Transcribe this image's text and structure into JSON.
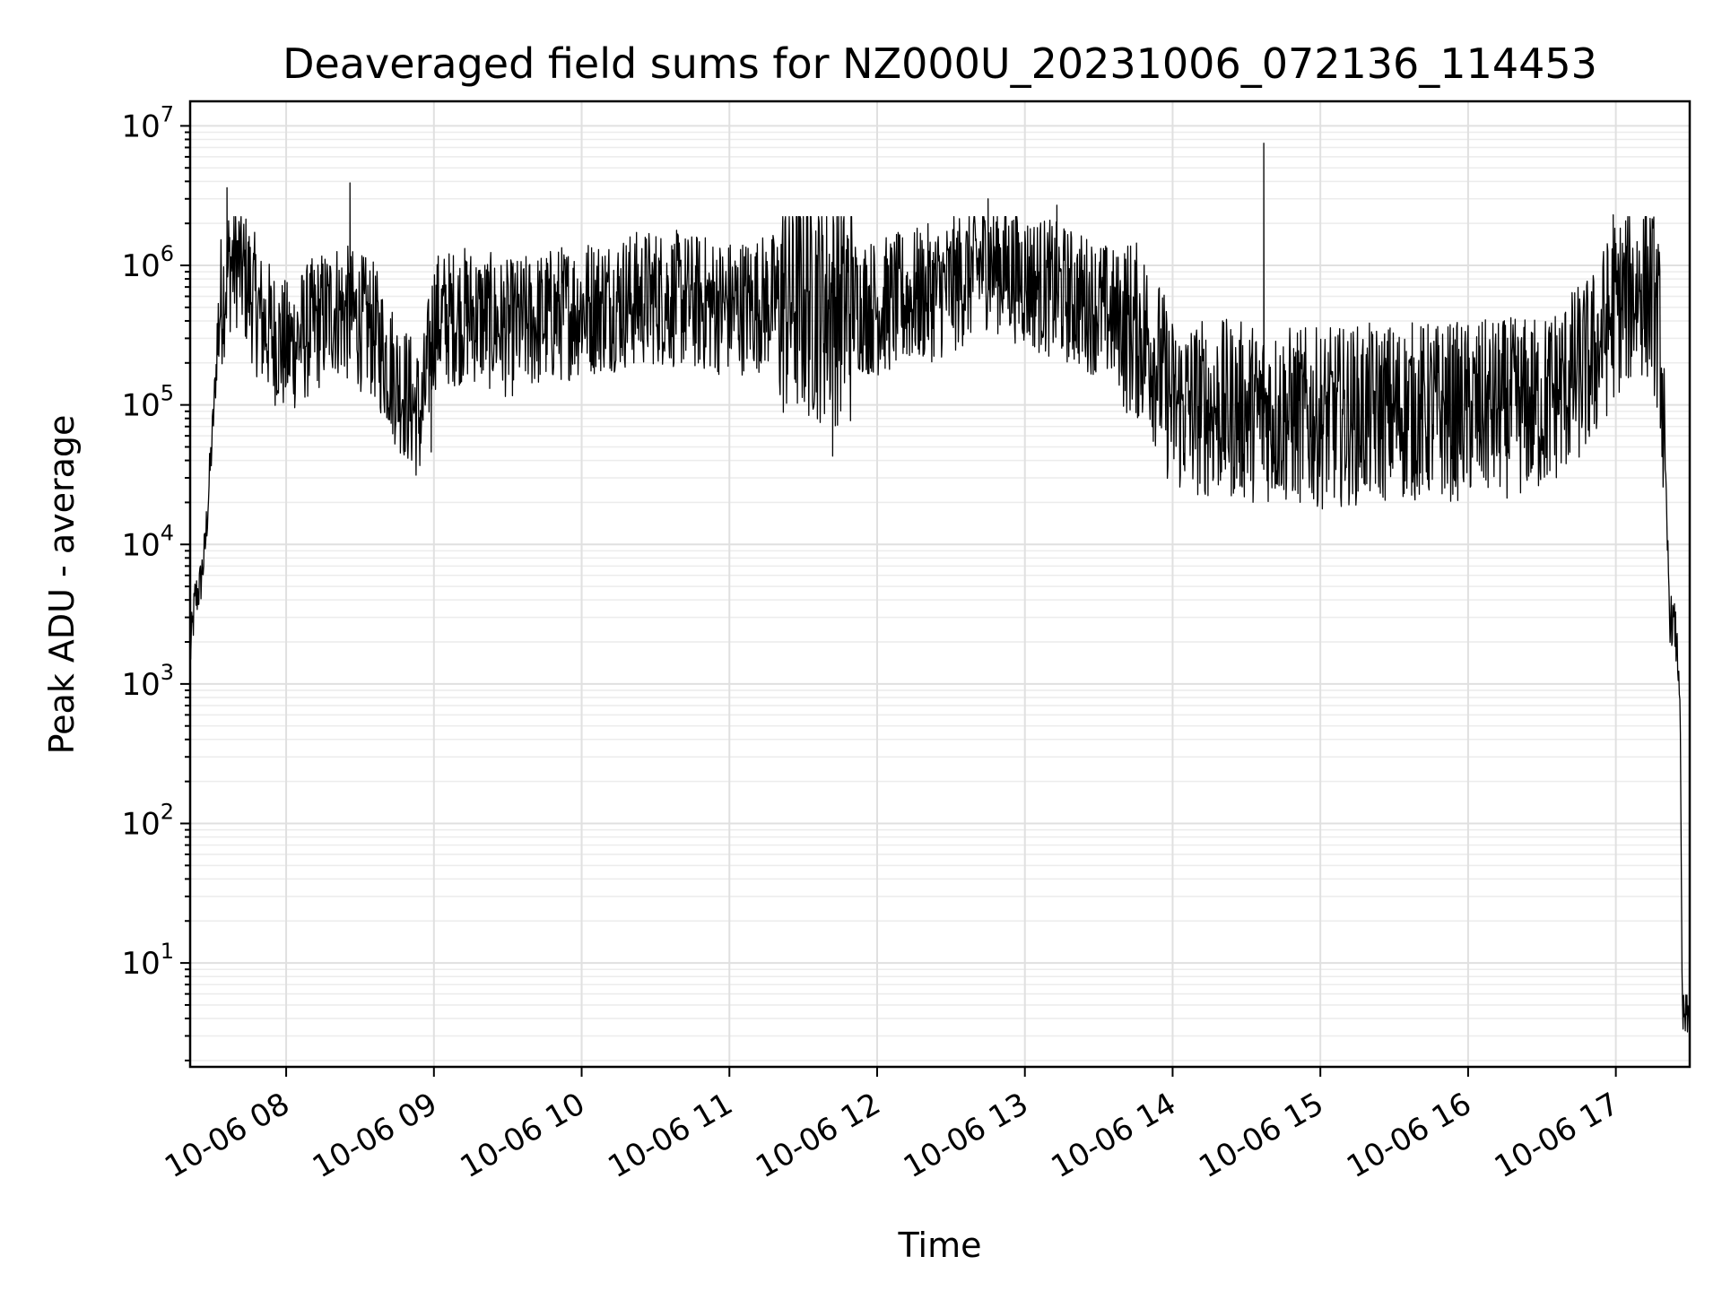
{
  "chart_data": {
    "type": "line",
    "title": "Deaveraged field sums for NZ000U_20231006_072136_114453",
    "xlabel": "Time",
    "ylabel": "Peak ADU - average",
    "x_scale": "time",
    "y_scale": "log",
    "xlim": [
      "10-06 07:21",
      "10-06 17:30"
    ],
    "ylim": [
      1.8,
      15000000
    ],
    "grid": "major and minor",
    "legend": "none",
    "line_color": "#000000",
    "x_ticks": [
      "10-06 08",
      "10-06 09",
      "10-06 10",
      "10-06 11",
      "10-06 12",
      "10-06 13",
      "10-06 14",
      "10-06 15",
      "10-06 16",
      "10-06 17"
    ],
    "y_ticks": [
      {
        "value": 10,
        "base": "10",
        "exp": "1"
      },
      {
        "value": 100,
        "base": "10",
        "exp": "2"
      },
      {
        "value": 1000,
        "base": "10",
        "exp": "3"
      },
      {
        "value": 10000,
        "base": "10",
        "exp": "4"
      },
      {
        "value": 100000,
        "base": "10",
        "exp": "5"
      },
      {
        "value": 1000000,
        "base": "10",
        "exp": "6"
      },
      {
        "value": 10000000,
        "base": "10",
        "exp": "7"
      }
    ],
    "series": [
      {
        "profile": {
          "time": [
            "10-06 07:21",
            "10-06 07:23",
            "10-06 07:25",
            "10-06 07:27",
            "10-06 07:30",
            "10-06 07:33",
            "10-06 07:37",
            "10-06 07:40",
            "10-06 07:45",
            "10-06 07:50",
            "10-06 08:00",
            "10-06 08:20",
            "10-06 08:35",
            "10-06 08:45",
            "10-06 08:55",
            "10-06 09:00",
            "10-06 09:15",
            "10-06 09:30",
            "10-06 10:00",
            "10-06 10:30",
            "10-06 11:00",
            "10-06 11:30",
            "10-06 12:00",
            "10-06 12:30",
            "10-06 12:45",
            "10-06 13:00",
            "10-06 13:30",
            "10-06 13:50",
            "10-06 14:00",
            "10-06 14:30",
            "10-06 15:00",
            "10-06 15:30",
            "10-06 16:00",
            "10-06 16:30",
            "10-06 16:50",
            "10-06 17:00",
            "10-06 17:10",
            "10-06 17:15",
            "10-06 17:18",
            "10-06 17:20",
            "10-06 17:22",
            "10-06 17:24",
            "10-06 17:26",
            "10-06 17:27",
            "10-06 17:30"
          ],
          "value": [
            1600,
            4000,
            5000,
            9000,
            60000,
            500000,
            1000000,
            1100000,
            700000,
            400000,
            250000,
            500000,
            350000,
            150000,
            80000,
            400000,
            450000,
            350000,
            500000,
            600000,
            500000,
            600000,
            500000,
            700000,
            1100000,
            800000,
            500000,
            300000,
            100000,
            90000,
            80000,
            90000,
            90000,
            100000,
            200000,
            500000,
            700000,
            600000,
            300000,
            30000,
            3000,
            2500,
            1000,
            4,
            4
          ]
        },
        "spikes": [
          {
            "time": "10-06 07:36",
            "value": 3600000
          },
          {
            "time": "10-06 08:26",
            "value": 3900000
          },
          {
            "time": "10-06 12:45",
            "value": 3000000
          },
          {
            "time": "10-06 13:13",
            "value": 2700000
          },
          {
            "time": "10-06 14:37",
            "value": 7500000
          },
          {
            "time": "10-06 16:59",
            "value": 2300000
          },
          {
            "time": "10-06 11:42",
            "value": 43000
          },
          {
            "time": "10-06 14:05",
            "value": 34000
          },
          {
            "time": "10-06 08:59",
            "value": 46000
          }
        ]
      }
    ]
  }
}
